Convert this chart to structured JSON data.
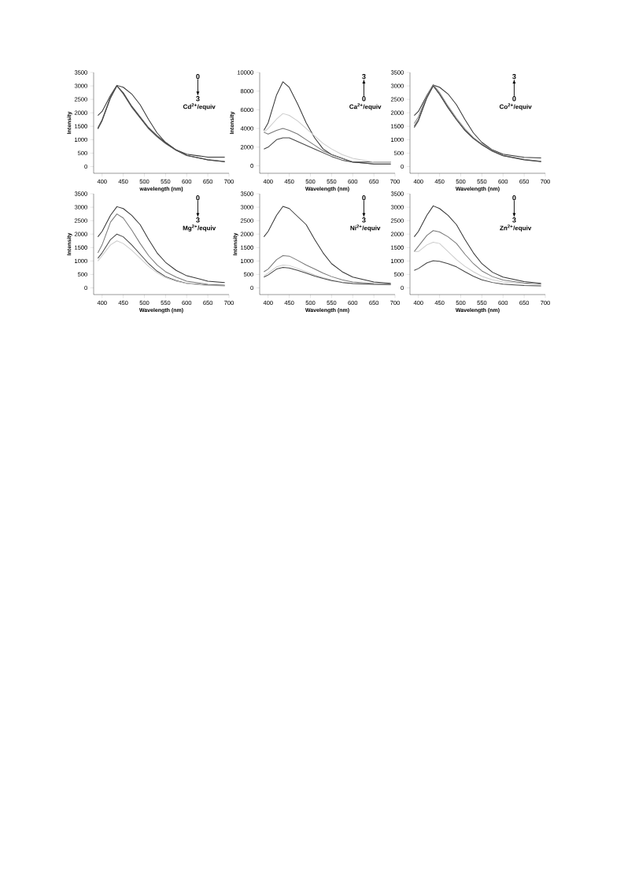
{
  "chart_data": [
    {
      "type": "line",
      "xlabel": "wavelength (nm)",
      "ylabel": "Intensity",
      "annotations": [
        "0",
        "3",
        "Cd$^{2+}$/equiv"
      ],
      "x": [
        390,
        400,
        420,
        435,
        450,
        470,
        490,
        510,
        530,
        550,
        575,
        600,
        650,
        690
      ],
      "xlim": [
        380,
        700
      ],
      "ylim": [
        -250,
        3500
      ],
      "xticks": [
        400,
        450,
        500,
        550,
        600,
        650,
        700
      ],
      "yticks": [
        0,
        500,
        1000,
        1500,
        2000,
        2500,
        3000,
        3500
      ],
      "series": [
        {
          "color": "#333333",
          "values": [
            1900,
            2050,
            2650,
            3020,
            2950,
            2700,
            2300,
            1750,
            1250,
            900,
            620,
            460,
            350,
            350
          ]
        },
        {
          "color": "#555555",
          "values": [
            1400,
            1700,
            2550,
            3000,
            2750,
            2250,
            1850,
            1450,
            1150,
            900,
            620,
            420,
            250,
            180
          ]
        },
        {
          "color": "#888888",
          "values": [
            1450,
            1750,
            2600,
            3000,
            2700,
            2200,
            1800,
            1400,
            1100,
            850,
            600,
            420,
            260,
            190
          ]
        },
        {
          "color": "#444444",
          "values": [
            1420,
            1720,
            2580,
            3010,
            2720,
            2230,
            1820,
            1420,
            1120,
            870,
            610,
            410,
            250,
            180
          ]
        }
      ]
    },
    {
      "type": "line",
      "xlabel": "Wavelength (nm)",
      "ylabel": "Intensity",
      "annotations": [
        "3",
        "0",
        "Ca$^{2+}$/equiv"
      ],
      "x": [
        390,
        400,
        420,
        435,
        450,
        470,
        490,
        510,
        530,
        550,
        575,
        600,
        650,
        690
      ],
      "xlim": [
        380,
        700
      ],
      "ylim": [
        -800,
        10000
      ],
      "xticks": [
        400,
        450,
        500,
        550,
        600,
        650,
        700
      ],
      "yticks": [
        0,
        2000,
        4000,
        6000,
        8000,
        10000
      ],
      "series": [
        {
          "color": "#333333",
          "values": [
            3800,
            4600,
            7600,
            9000,
            8400,
            6600,
            4600,
            3000,
            1800,
            1200,
            800,
            400,
            400,
            400
          ]
        },
        {
          "color": "#cccccc",
          "values": [
            3600,
            4000,
            5000,
            5600,
            5400,
            4800,
            4000,
            3200,
            2400,
            1800,
            1200,
            800,
            400,
            400
          ]
        },
        {
          "color": "#777777",
          "values": [
            3600,
            3400,
            3800,
            4000,
            3800,
            3400,
            2800,
            2200,
            1600,
            1200,
            800,
            400,
            200,
            200
          ]
        },
        {
          "color": "#444444",
          "values": [
            1800,
            2000,
            2800,
            3000,
            3000,
            2600,
            2200,
            1800,
            1400,
            1000,
            600,
            400,
            200,
            200
          ]
        }
      ]
    },
    {
      "type": "line",
      "xlabel": "Wavelength (nm)",
      "annotations": [
        "3",
        "0",
        "Co$^{2+}$/equiv"
      ],
      "x": [
        390,
        400,
        420,
        435,
        450,
        470,
        490,
        510,
        530,
        550,
        575,
        600,
        650,
        690
      ],
      "xlim": [
        380,
        700
      ],
      "ylim": [
        -250,
        3500
      ],
      "xticks": [
        400,
        450,
        500,
        550,
        600,
        650,
        700
      ],
      "yticks": [
        0,
        500,
        1000,
        1500,
        2000,
        2500,
        3000,
        3500
      ],
      "series": [
        {
          "color": "#333333",
          "values": [
            1900,
            2050,
            2650,
            3030,
            2950,
            2700,
            2300,
            1750,
            1250,
            900,
            620,
            460,
            340,
            320
          ]
        },
        {
          "color": "#555555",
          "values": [
            1500,
            1750,
            2600,
            3000,
            2700,
            2200,
            1750,
            1350,
            1050,
            820,
            580,
            410,
            260,
            190
          ]
        },
        {
          "color": "#888888",
          "values": [
            1600,
            1850,
            2650,
            3050,
            2750,
            2250,
            1800,
            1400,
            1080,
            840,
            600,
            420,
            270,
            200
          ]
        },
        {
          "color": "#444444",
          "values": [
            1450,
            1700,
            2550,
            3000,
            2680,
            2180,
            1740,
            1340,
            1040,
            810,
            570,
            400,
            250,
            180
          ]
        }
      ]
    },
    {
      "type": "line",
      "xlabel": "Wavelength (nm)",
      "ylabel": "Intensity",
      "annotations": [
        "0",
        "3",
        "Mg$^{2+}$/equiv"
      ],
      "x": [
        390,
        400,
        420,
        435,
        450,
        470,
        490,
        510,
        530,
        550,
        575,
        600,
        650,
        690
      ],
      "xlim": [
        380,
        700
      ],
      "ylim": [
        -250,
        3500
      ],
      "xticks": [
        400,
        450,
        500,
        550,
        600,
        650,
        700
      ],
      "yticks": [
        0,
        500,
        1000,
        1500,
        2000,
        2500,
        3000,
        3500
      ],
      "series": [
        {
          "color": "#333333",
          "values": [
            1900,
            2100,
            2700,
            3020,
            2950,
            2700,
            2350,
            1800,
            1300,
            950,
            650,
            450,
            250,
            200
          ]
        },
        {
          "color": "#777777",
          "values": [
            1300,
            1600,
            2450,
            2750,
            2600,
            2150,
            1650,
            1200,
            850,
            600,
            400,
            250,
            130,
            100
          ]
        },
        {
          "color": "#444444",
          "values": [
            1100,
            1300,
            1800,
            2000,
            1900,
            1600,
            1250,
            900,
            620,
            420,
            270,
            170,
            100,
            80
          ]
        },
        {
          "color": "#cccccc",
          "values": [
            1000,
            1200,
            1600,
            1750,
            1650,
            1400,
            1100,
            800,
            560,
            380,
            250,
            160,
            90,
            70
          ]
        }
      ]
    },
    {
      "type": "line",
      "xlabel": "Wavelength (nm)",
      "ylabel": "Intensity",
      "annotations": [
        "0",
        "3",
        "Ni$^{2+}$/equiv"
      ],
      "x": [
        390,
        400,
        420,
        435,
        450,
        470,
        490,
        510,
        530,
        550,
        575,
        600,
        650,
        690
      ],
      "xlim": [
        380,
        700
      ],
      "ylim": [
        -250,
        3500
      ],
      "xticks": [
        400,
        450,
        500,
        550,
        600,
        650,
        700
      ],
      "yticks": [
        0,
        500,
        1000,
        1500,
        2000,
        2500,
        3000,
        3500
      ],
      "series": [
        {
          "color": "#333333",
          "values": [
            1900,
            2100,
            2700,
            3030,
            2950,
            2650,
            2350,
            1800,
            1300,
            900,
            600,
            400,
            220,
            170
          ]
        },
        {
          "color": "#777777",
          "values": [
            600,
            700,
            1050,
            1200,
            1180,
            1020,
            850,
            700,
            550,
            420,
            300,
            220,
            160,
            140
          ]
        },
        {
          "color": "#cccccc",
          "values": [
            450,
            550,
            780,
            850,
            830,
            720,
            600,
            480,
            380,
            300,
            220,
            170,
            140,
            130
          ]
        },
        {
          "color": "#444444",
          "values": [
            400,
            480,
            700,
            760,
            740,
            650,
            550,
            440,
            350,
            270,
            200,
            160,
            130,
            120
          ]
        }
      ]
    },
    {
      "type": "line",
      "xlabel": "Wavelength (nm)",
      "annotations": [
        "0",
        "3",
        "Zn$^{2+}$/equiv"
      ],
      "x": [
        390,
        400,
        420,
        435,
        450,
        470,
        490,
        510,
        530,
        550,
        575,
        600,
        650,
        690
      ],
      "xlim": [
        380,
        700
      ],
      "ylim": [
        -250,
        3500
      ],
      "xticks": [
        400,
        450,
        500,
        550,
        600,
        650,
        700
      ],
      "yticks": [
        0,
        500,
        1000,
        1500,
        2000,
        2500,
        3000,
        3500
      ],
      "series": [
        {
          "color": "#333333",
          "values": [
            1900,
            2100,
            2700,
            3050,
            2950,
            2700,
            2350,
            1800,
            1300,
            900,
            580,
            400,
            230,
            170
          ]
        },
        {
          "color": "#777777",
          "values": [
            1350,
            1550,
            1950,
            2130,
            2080,
            1900,
            1650,
            1250,
            900,
            630,
            420,
            290,
            180,
            140
          ]
        },
        {
          "color": "#cccccc",
          "values": [
            1350,
            1350,
            1600,
            1700,
            1650,
            1350,
            1050,
            800,
            600,
            430,
            300,
            220,
            150,
            120
          ]
        },
        {
          "color": "#444444",
          "values": [
            650,
            720,
            930,
            1010,
            990,
            900,
            780,
            600,
            430,
            300,
            200,
            140,
            90,
            70
          ]
        }
      ]
    }
  ]
}
